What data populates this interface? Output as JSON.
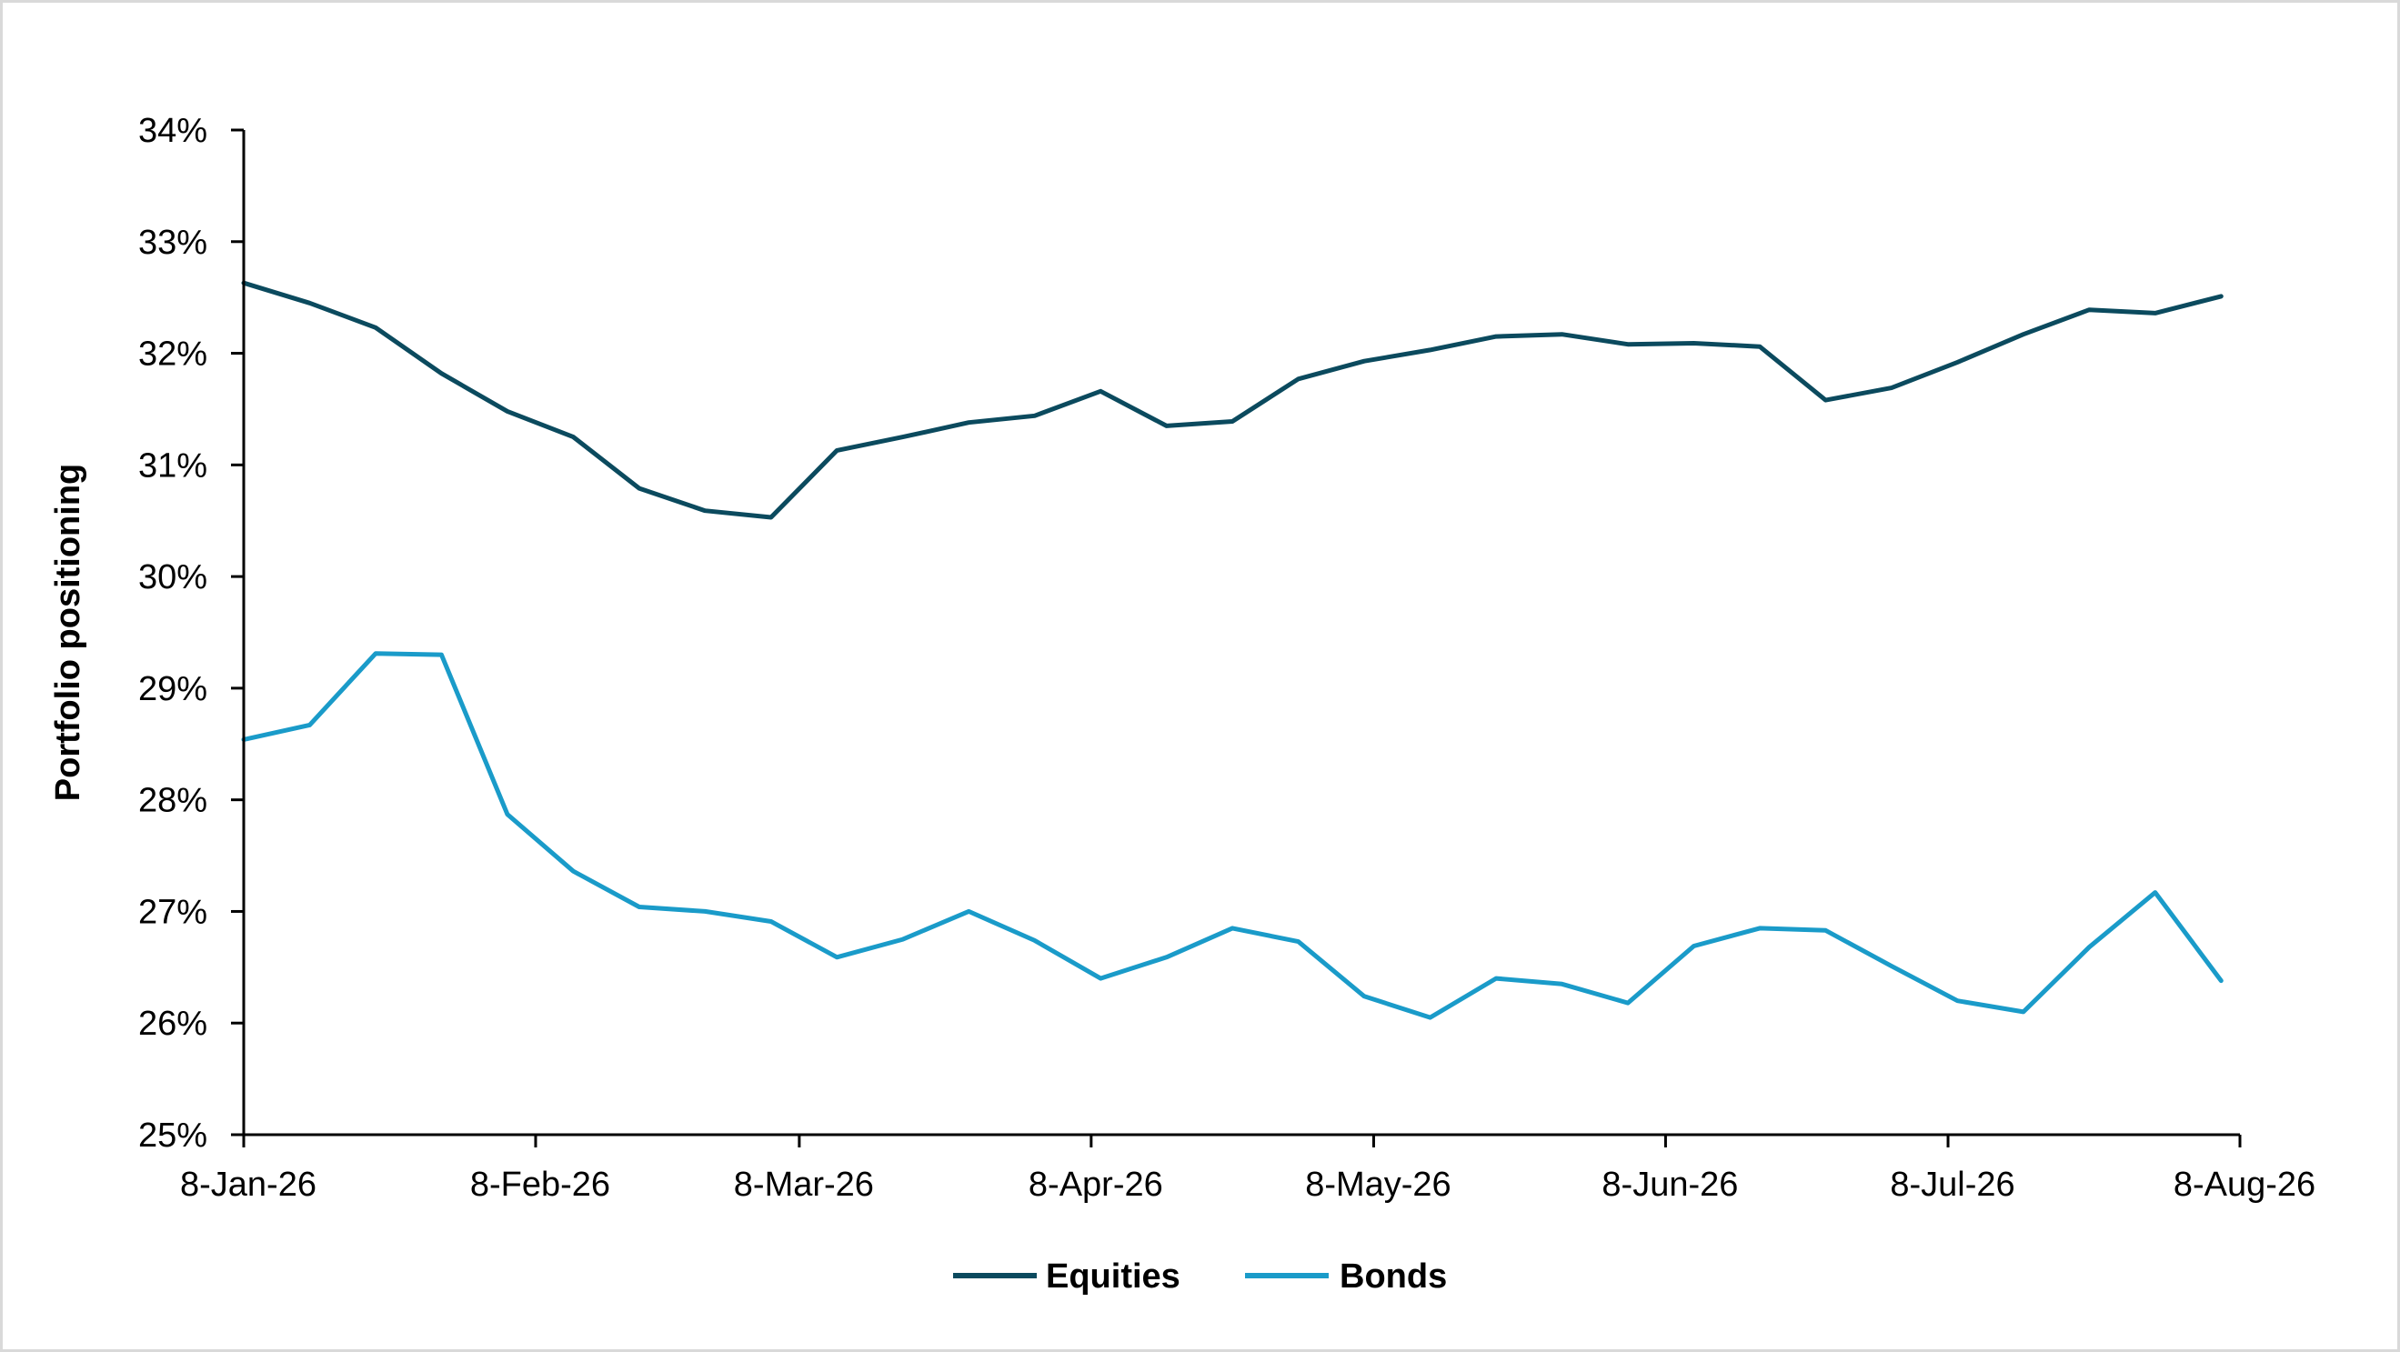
{
  "chart_data": {
    "type": "line",
    "title": "",
    "xlabel": "",
    "ylabel": "Portfolio positioning",
    "ylim": [
      0.25,
      0.34
    ],
    "yticks": [
      "25%",
      "26%",
      "27%",
      "28%",
      "29%",
      "30%",
      "31%",
      "32%",
      "33%",
      "34%"
    ],
    "xticks": [
      "8-Jan-26",
      "8-Feb-26",
      "8-Mar-26",
      "8-Apr-26",
      "8-May-26",
      "8-Jun-26",
      "8-Jul-26",
      "8-Aug-26"
    ],
    "xtick_dates": [
      "2026-01-08",
      "2026-02-08",
      "2026-03-08",
      "2026-04-08",
      "2026-05-08",
      "2026-06-08",
      "2026-07-08",
      "2026-08-08"
    ],
    "xlim": [
      "2026-01-08",
      "2026-08-08"
    ],
    "grid": false,
    "legend": "bottom",
    "x": [
      "2026-01-08",
      "2026-01-15",
      "2026-01-22",
      "2026-01-29",
      "2026-02-05",
      "2026-02-12",
      "2026-02-19",
      "2026-02-26",
      "2026-03-05",
      "2026-03-12",
      "2026-03-19",
      "2026-03-26",
      "2026-04-02",
      "2026-04-09",
      "2026-04-16",
      "2026-04-23",
      "2026-04-30",
      "2026-05-07",
      "2026-05-14",
      "2026-05-21",
      "2026-05-28",
      "2026-06-04",
      "2026-06-11",
      "2026-06-18",
      "2026-06-25",
      "2026-07-02",
      "2026-07-09",
      "2026-07-16",
      "2026-07-23",
      "2026-07-30",
      "2026-08-06"
    ],
    "series": [
      {
        "name": "Equities",
        "color": "#0b4a5e",
        "values": [
          0.3263,
          0.3245,
          0.3223,
          0.3182,
          0.3148,
          0.3125,
          0.3079,
          0.3059,
          0.3053,
          0.3113,
          0.3125,
          0.3138,
          0.3144,
          0.3166,
          0.3135,
          0.3139,
          0.3177,
          0.3193,
          0.3203,
          0.3215,
          0.3217,
          0.3208,
          0.3209,
          0.3206,
          0.3158,
          0.3169,
          0.3192,
          0.3217,
          0.3239,
          0.3236,
          0.3251
        ]
      },
      {
        "name": "Bonds",
        "color": "#1a9bc9",
        "values": [
          0.2854,
          0.2867,
          0.2931,
          0.293,
          0.2787,
          0.2736,
          0.2704,
          0.27,
          0.2691,
          0.2659,
          0.2675,
          0.27,
          0.2674,
          0.264,
          0.2659,
          0.2685,
          0.2673,
          0.2624,
          0.2605,
          0.264,
          0.2635,
          0.2618,
          0.2669,
          0.2685,
          0.2683,
          0.2651,
          0.262,
          0.261,
          0.2668,
          0.2717,
          0.2638
        ]
      }
    ]
  }
}
